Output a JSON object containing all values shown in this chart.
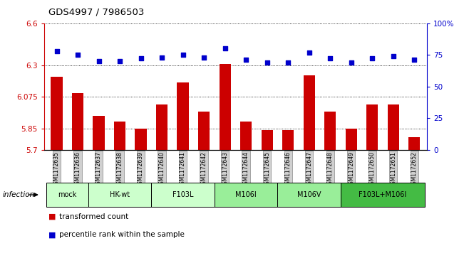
{
  "title": "GDS4997 / 7986503",
  "samples": [
    "GSM1172635",
    "GSM1172636",
    "GSM1172637",
    "GSM1172638",
    "GSM1172639",
    "GSM1172640",
    "GSM1172641",
    "GSM1172642",
    "GSM1172643",
    "GSM1172644",
    "GSM1172645",
    "GSM1172646",
    "GSM1172647",
    "GSM1172648",
    "GSM1172649",
    "GSM1172650",
    "GSM1172651",
    "GSM1172652"
  ],
  "bar_values": [
    6.22,
    6.1,
    5.94,
    5.9,
    5.85,
    6.02,
    6.18,
    5.97,
    6.31,
    5.9,
    5.84,
    5.84,
    6.23,
    5.97,
    5.85,
    6.02,
    6.02,
    5.79
  ],
  "dot_values": [
    78,
    75,
    70,
    70,
    72,
    73,
    75,
    73,
    80,
    71,
    69,
    69,
    77,
    72,
    69,
    72,
    74,
    71
  ],
  "ylim": [
    5.7,
    6.6
  ],
  "yticks": [
    5.7,
    5.85,
    6.075,
    6.3,
    6.6
  ],
  "ytick_labels": [
    "5.7",
    "5.85",
    "6.075",
    "6.3",
    "6.6"
  ],
  "y2lim": [
    0,
    100
  ],
  "y2ticks": [
    0,
    25,
    50,
    75,
    100
  ],
  "y2tick_labels": [
    "0",
    "25",
    "50",
    "75",
    "100%"
  ],
  "bar_color": "#cc0000",
  "dot_color": "#0000cc",
  "bar_width": 0.55,
  "groups": [
    {
      "label": "mock",
      "start": 0,
      "end": 2,
      "color": "#ccffcc"
    },
    {
      "label": "HK-wt",
      "start": 2,
      "end": 5,
      "color": "#ccffcc"
    },
    {
      "label": "F103L",
      "start": 5,
      "end": 8,
      "color": "#ccffcc"
    },
    {
      "label": "M106I",
      "start": 8,
      "end": 11,
      "color": "#99ee99"
    },
    {
      "label": "M106V",
      "start": 11,
      "end": 14,
      "color": "#99ee99"
    },
    {
      "label": "F103L+M106I",
      "start": 14,
      "end": 18,
      "color": "#44bb44"
    }
  ],
  "legend_bar_label": "transformed count",
  "legend_dot_label": "percentile rank within the sample",
  "infection_label": "infection",
  "background_color": "#ffffff",
  "axis_label_color_left": "#cc0000",
  "axis_label_color_right": "#0000cc"
}
